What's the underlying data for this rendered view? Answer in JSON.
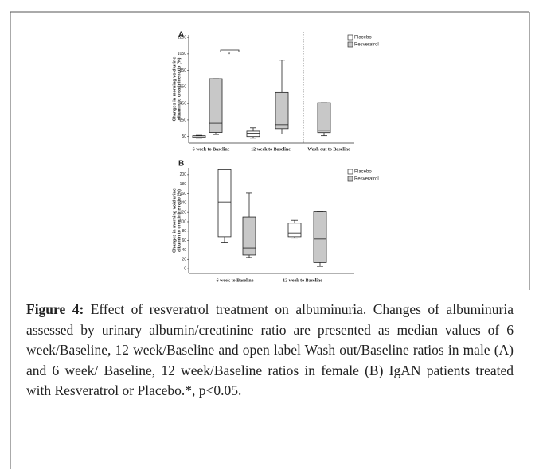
{
  "chart_data": [
    {
      "type": "box",
      "panel": "A",
      "ylabel": [
        "Changes in morning void urine",
        "albumin to creatinine ratio (%)"
      ],
      "categories": [
        "6 week to Baseline",
        "12 week to Baseline",
        "Wash out to Baseline"
      ],
      "series": [
        {
          "name": "Placebo",
          "color": "#ffffff",
          "boxes": [
            {
              "min": 30,
              "q1": 35,
              "median": 45,
              "q3": 60,
              "max": 65
            },
            {
              "min": 30,
              "q1": 50,
              "median": 90,
              "q3": 115,
              "max": 155
            },
            null
          ]
        },
        {
          "name": "Resveratrol",
          "color": "#c8c8c8",
          "boxes": [
            {
              "min": 75,
              "q1": 100,
              "median": 210,
              "q3": 750,
              "max": 750
            },
            {
              "min": 80,
              "q1": 145,
              "median": 193,
              "q3": 583,
              "max": 974
            },
            {
              "min": 60,
              "q1": 98,
              "median": 126,
              "q3": 460,
              "max": 460
            }
          ]
        }
      ],
      "annotation": "*",
      "ylim": [
        -30,
        1280
      ],
      "yticks": [
        50,
        250,
        450,
        650,
        850,
        1050,
        1250
      ]
    },
    {
      "type": "box",
      "panel": "B",
      "ylabel": [
        "Changes in morning void urine",
        "albumin to creatinine ratio (%)"
      ],
      "categories": [
        "6 week to Baseline",
        "12 week to Baseline"
      ],
      "series": [
        {
          "name": "Placebo",
          "color": "#ffffff",
          "boxes": [
            {
              "min": 55,
              "q1": 68,
              "median": 142,
              "q3": 211,
              "max": 211
            },
            {
              "min": 65,
              "q1": 68,
              "median": 76,
              "q3": 97,
              "max": 103
            }
          ]
        },
        {
          "name": "Resveratrol",
          "color": "#c8c8c8",
          "boxes": [
            {
              "min": 24,
              "q1": 29,
              "median": 44,
              "q3": 110,
              "max": 161
            },
            {
              "min": 5,
              "q1": 13,
              "median": 63,
              "q3": 121,
              "max": 121
            }
          ]
        }
      ],
      "ylim": [
        -10,
        215
      ],
      "yticks": [
        0,
        20,
        40,
        60,
        80,
        100,
        120,
        140,
        160,
        180,
        200
      ]
    }
  ],
  "caption": {
    "label": "Figure 4:",
    "text": "Effect of resveratrol treatment on albuminuria. Changes of albuminuria assessed by urinary albumin/creatinine ratio are presented as median values of 6 week/Baseline, 12 week/Baseline and open label Wash out/Baseline ratios in male (A) and 6 week/ Baseline, 12 week/Baseline ratios in female (B) IgAN patients treated with Resveratrol or Placebo.*, p<0.05."
  }
}
